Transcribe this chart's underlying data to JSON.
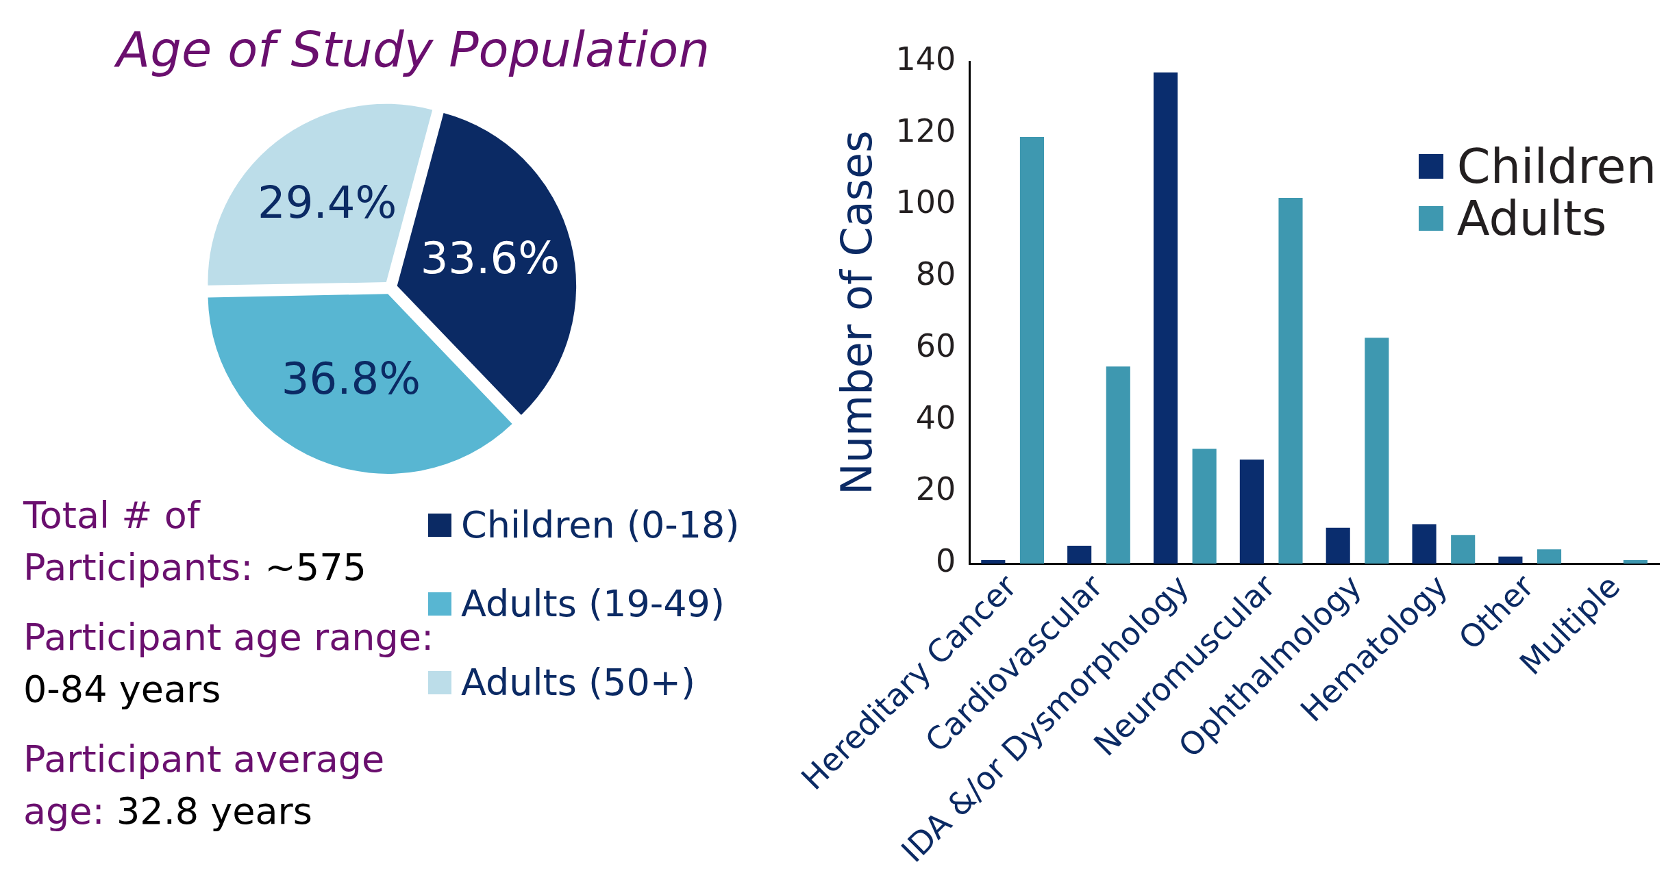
{
  "chart_data": [
    {
      "type": "pie",
      "title": "Age of Study Population",
      "categories": [
        "Children (0-18)",
        "Adults (19-49)",
        "Adults (50+)"
      ],
      "values": [
        33.6,
        36.8,
        29.4
      ],
      "colors": [
        "#0b2a64",
        "#58b6d2",
        "#bcdde9"
      ],
      "value_labels": [
        "33.6%",
        "36.8%",
        "29.4%"
      ],
      "legend": "bottom right",
      "annotations": [
        "Total # of Participants: ~575",
        "Participant age range: 0-84 years",
        "Participant average age: 32.8 years"
      ]
    },
    {
      "type": "bar",
      "categories": [
        "Hereditary Cancer",
        "Cardiovascular",
        "IDA &/or Dysmorphology",
        "Neuromuscular",
        "Ophthalmology",
        "Hematology",
        "Other",
        "Multiple"
      ],
      "series": [
        {
          "name": "Children",
          "color": "#0a2d6e",
          "values": [
            1,
            5,
            137,
            29,
            10,
            11,
            2,
            0
          ]
        },
        {
          "name": "Adults",
          "color": "#3e98b0",
          "values": [
            119,
            55,
            32,
            102,
            63,
            8,
            4,
            1
          ]
        }
      ],
      "ylabel": "Number of Cases",
      "ylim": [
        0,
        140
      ],
      "yticks": [
        0,
        20,
        40,
        60,
        80,
        100,
        120,
        140
      ],
      "grid": false,
      "legend": "top right"
    }
  ]
}
